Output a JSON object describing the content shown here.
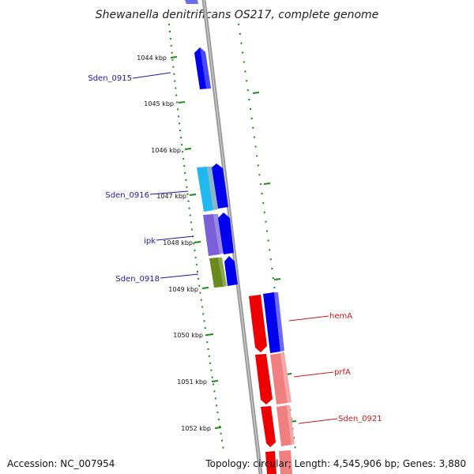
{
  "title": "Shewanella denitrificans OS217, complete genome",
  "ticks": [
    "1044 kbp",
    "1045 kbp",
    "1046 kbp",
    "1047 kbp",
    "1048 kbp",
    "1049 kbp",
    "1050 kbp",
    "1051 kbp",
    "1052 kbp"
  ],
  "genes": [
    {
      "name": "Sden_0915",
      "strand": "forward",
      "color": "#0000ee"
    },
    {
      "name": "Sden_0916",
      "strand": "reverse",
      "color": "#20b8ee"
    },
    {
      "name": "",
      "strand": "forward",
      "color": "#0000ee"
    },
    {
      "name": "ipk",
      "strand": "reverse",
      "color": "#7a5fd8"
    },
    {
      "name": "",
      "strand": "forward",
      "color": "#0000ee"
    },
    {
      "name": "Sden_0918",
      "strand": "reverse",
      "color": "#6b8a1e"
    },
    {
      "name": "",
      "strand": "forward",
      "color": "#0000ee"
    },
    {
      "name": "hemA",
      "strand": "forward",
      "color": "#0000ee"
    },
    {
      "name": "",
      "strand": "reverse",
      "color": "#ee0000"
    },
    {
      "name": "prfA",
      "strand": "forward",
      "color": "#f08080"
    },
    {
      "name": "",
      "strand": "reverse",
      "color": "#ee0000"
    },
    {
      "name": "Sden_0921",
      "strand": "forward",
      "color": "#f08080"
    },
    {
      "name": "",
      "strand": "reverse",
      "color": "#ee0000"
    }
  ],
  "footer": {
    "accession": "Accession: NC_007954",
    "summary": "Topology: circular; Length: 4,545,906 bp; Genes: 3,880"
  },
  "colors": {
    "backbone": "#888888",
    "tick": "#1a8a1a",
    "left_label": "#1a1aa8",
    "right_label": "#c81818"
  }
}
